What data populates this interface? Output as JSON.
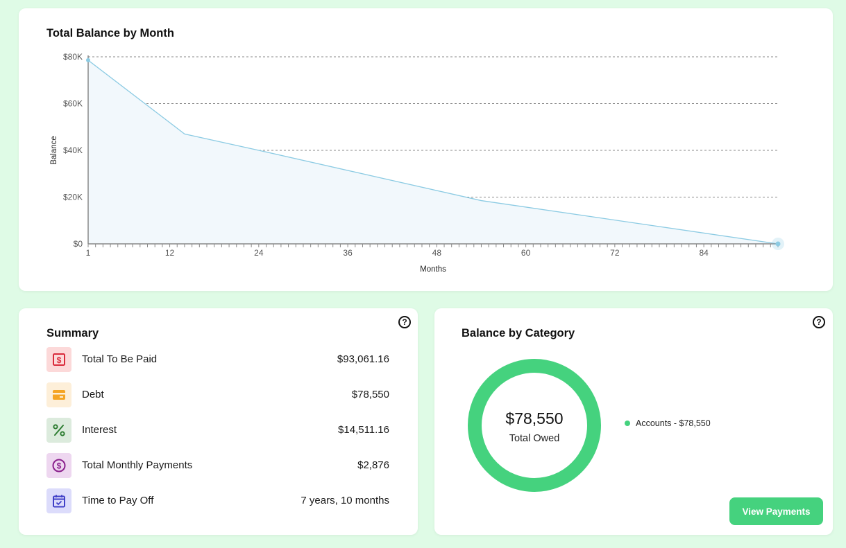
{
  "colors": {
    "page_bg": "#dffbe6",
    "line": "#8ccbe3",
    "area": "#f2f8fc",
    "grid": "#888888",
    "axis": "#888888",
    "donut": "#45d27e",
    "button": "#45d27e"
  },
  "balance_chart": {
    "title": "Total Balance by Month"
  },
  "chart_data": {
    "type": "area",
    "title": "Total Balance by Month",
    "xlabel": "Months",
    "ylabel": "Balance",
    "xlim": [
      1,
      94
    ],
    "ylim": [
      0,
      80000
    ],
    "x_ticks": [
      1,
      12,
      24,
      36,
      48,
      60,
      72,
      84
    ],
    "x_tick_labels": [
      "1",
      "12",
      "24",
      "36",
      "48",
      "60",
      "72",
      "84"
    ],
    "y_ticks": [
      0,
      20000,
      40000,
      60000,
      80000
    ],
    "y_tick_labels": [
      "$0",
      "$20K",
      "$40K",
      "$60K",
      "$80K"
    ],
    "grid": true,
    "series": [
      {
        "x": [
          1,
          14,
          24,
          54,
          94
        ],
        "y": [
          78550,
          47000,
          40000,
          18500,
          0
        ]
      }
    ]
  },
  "summary": {
    "title": "Summary",
    "help_icon": "?",
    "rows": [
      {
        "icon": "dollar-bill-icon",
        "label": "Total To Be Paid",
        "value": "$93,061.16",
        "icon_bg": "#fcd9d9",
        "icon_color": "#d92a3b"
      },
      {
        "icon": "credit-card-icon",
        "label": "Debt",
        "value": "$78,550",
        "icon_bg": "#fdefd9",
        "icon_color": "#f5a524"
      },
      {
        "icon": "percent-icon",
        "label": "Interest",
        "value": "$14,511.16",
        "icon_bg": "#dcebdd",
        "icon_color": "#2e7d32"
      },
      {
        "icon": "dollar-coin-icon",
        "label": "Total Monthly Payments",
        "value": "$2,876",
        "icon_bg": "#eed7f0",
        "icon_color": "#8a1f8c"
      },
      {
        "icon": "calendar-check-icon",
        "label": "Time to Pay Off",
        "value": "7 years, 10 months",
        "icon_bg": "#dcdcfb",
        "icon_color": "#3f3fc7"
      }
    ]
  },
  "category": {
    "title": "Balance by Category",
    "help_icon": "?",
    "donut_value": "$78,550",
    "donut_label": "Total Owed",
    "legend_label": "Accounts - $78,550",
    "button_label": "View Payments"
  }
}
